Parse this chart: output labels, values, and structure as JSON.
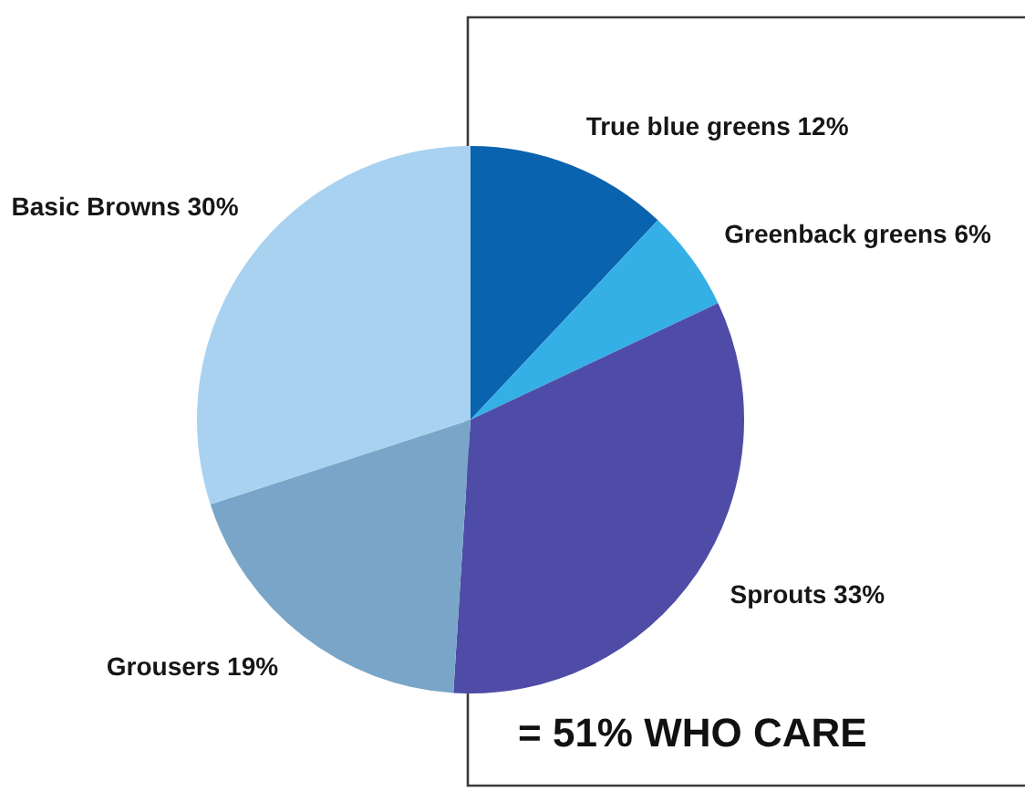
{
  "chart_data": {
    "type": "pie",
    "categories": [
      "True blue greens",
      "Greenback greens",
      "Sprouts",
      "Grousers",
      "Basic Browns"
    ],
    "values": [
      12,
      6,
      33,
      19,
      30
    ],
    "value_labels": [
      "12%",
      "6%",
      "33%",
      "19%",
      "30%"
    ],
    "colors": [
      "#0a63ae",
      "#35b0e6",
      "#4e4ca6",
      "#79a6c8",
      "#a8d2f0"
    ],
    "legend": false,
    "annotations": [
      "= 51% WHO CARE"
    ]
  }
}
